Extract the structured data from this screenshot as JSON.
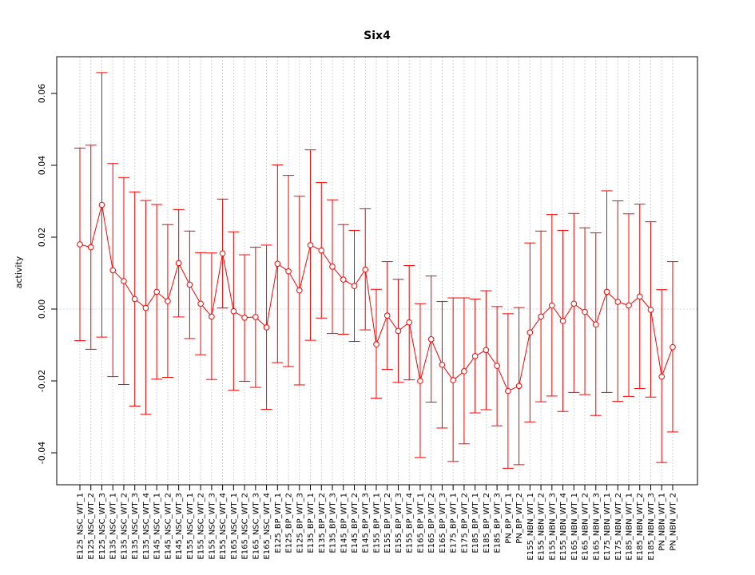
{
  "chart_data": {
    "type": "line",
    "title": "Six4",
    "xlabel": "",
    "ylabel": "activity",
    "ylim": [
      -0.048,
      0.071
    ],
    "yticks": [
      -0.04,
      -0.02,
      0.0,
      0.02,
      0.04,
      0.06
    ],
    "ytick_labels": [
      "-0.04",
      "-0.02",
      "0.00",
      "0.02",
      "0.04",
      "0.06"
    ],
    "grid": true,
    "reference_line": 0,
    "colors": {
      "series": "#ff0000",
      "grid": "#c8c8c8",
      "frame": "#000000"
    },
    "categories": [
      "E125_NSC_WT_1",
      "E125_NSC_WT_2",
      "E125_NSC_WT_3",
      "E135_NSC_WT_1",
      "E135_NSC_WT_2",
      "E135_NSC_WT_3",
      "E135_NSC_WT_4",
      "E145_NSC_WT_1",
      "E145_NSC_WT_2",
      "E145_NSC_WT_3",
      "E155_NSC_WT_1",
      "E155_NSC_WT_2",
      "E155_NSC_WT_3",
      "E155_NSC_WT_4",
      "E165_NSC_WT_1",
      "E165_NSC_WT_2",
      "E165_NSC_WT_3",
      "E165_NSC_WT_4",
      "E125_BP_WT_1",
      "E125_BP_WT_2",
      "E125_BP_WT_3",
      "E135_BP_WT_1",
      "E135_BP_WT_2",
      "E135_BP_WT_3",
      "E145_BP_WT_1",
      "E145_BP_WT_2",
      "E145_BP_WT_3",
      "E155_BP_WT_1",
      "E155_BP_WT_2",
      "E155_BP_WT_3",
      "E155_BP_WT_4",
      "E165_BP_WT_1",
      "E165_BP_WT_2",
      "E165_BP_WT_3",
      "E175_BP_WT_1",
      "E175_BP_WT_2",
      "E185_BP_WT_1",
      "E185_BP_WT_2",
      "E185_BP_WT_3",
      "PN_BP_WT_1",
      "PN_BP_WT_2",
      "E155_NBN_WT_1",
      "E155_NBN_WT_2",
      "E155_NBN_WT_3",
      "E155_NBN_WT_4",
      "E165_NBN_WT_1",
      "E165_NBN_WT_2",
      "E165_NBN_WT_3",
      "E175_NBN_WT_1",
      "E175_NBN_WT_2",
      "E185_NBN_WT_1",
      "E185_NBN_WT_2",
      "E185_NBN_WT_3",
      "PN_NBN_WT_1",
      "PN_NBN_WT_2"
    ],
    "series": [
      {
        "values": [
          0.018,
          0.0172,
          0.029,
          0.0108,
          0.0078,
          0.0028,
          0.0003,
          0.0048,
          0.0022,
          0.0128,
          0.0068,
          0.0015,
          -0.0021,
          0.0155,
          -0.0006,
          -0.0024,
          -0.0022,
          -0.0051,
          0.0126,
          0.0105,
          0.0052,
          0.0178,
          0.0163,
          0.0118,
          0.0082,
          0.0064,
          0.011,
          -0.0098,
          -0.0018,
          -0.0061,
          -0.0037,
          -0.02,
          -0.0084,
          -0.0155,
          -0.0198,
          -0.0173,
          -0.0131,
          -0.0114,
          -0.0158,
          -0.0228,
          -0.0214,
          -0.0065,
          -0.0021,
          0.001,
          -0.0033,
          0.0015,
          -0.0008,
          -0.0043,
          0.0048,
          0.002,
          0.001,
          0.0035,
          -0.0002,
          -0.0188,
          -0.0106
        ],
        "lower": [
          -0.0088,
          -0.0112,
          -0.0078,
          -0.0188,
          -0.021,
          -0.027,
          -0.0293,
          -0.0195,
          -0.019,
          -0.0022,
          -0.0082,
          -0.0127,
          -0.0196,
          0.0003,
          -0.0226,
          -0.0201,
          -0.0218,
          -0.0279,
          -0.0149,
          -0.016,
          -0.0211,
          -0.0087,
          -0.0025,
          -0.0068,
          -0.007,
          -0.009,
          -0.0058,
          -0.0248,
          -0.0168,
          -0.0204,
          -0.0197,
          -0.0413,
          -0.0259,
          -0.0331,
          -0.0424,
          -0.0375,
          -0.0289,
          -0.028,
          -0.0325,
          -0.0443,
          -0.0433,
          -0.0314,
          -0.0258,
          -0.0242,
          -0.0285,
          -0.0232,
          -0.0238,
          -0.0296,
          -0.0232,
          -0.0257,
          -0.0243,
          -0.0221,
          -0.0245,
          -0.0427,
          -0.0342
        ],
        "upper": [
          0.0448,
          0.0456,
          0.0658,
          0.0405,
          0.0366,
          0.0326,
          0.0302,
          0.0291,
          0.0235,
          0.0277,
          0.0217,
          0.0157,
          0.0156,
          0.0306,
          0.0215,
          0.0151,
          0.0172,
          0.0178,
          0.0401,
          0.0372,
          0.0314,
          0.0443,
          0.0352,
          0.0304,
          0.0235,
          0.0219,
          0.0279,
          0.0055,
          0.0132,
          0.0083,
          0.0121,
          0.0015,
          0.0092,
          0.0021,
          0.0031,
          0.0031,
          0.0028,
          0.0051,
          0.0007,
          -0.0013,
          0.0004,
          0.0184,
          0.0217,
          0.0263,
          0.0219,
          0.0266,
          0.0226,
          0.0212,
          0.0329,
          0.0301,
          0.0265,
          0.0292,
          0.0243,
          0.0054,
          0.0132
        ]
      }
    ]
  }
}
